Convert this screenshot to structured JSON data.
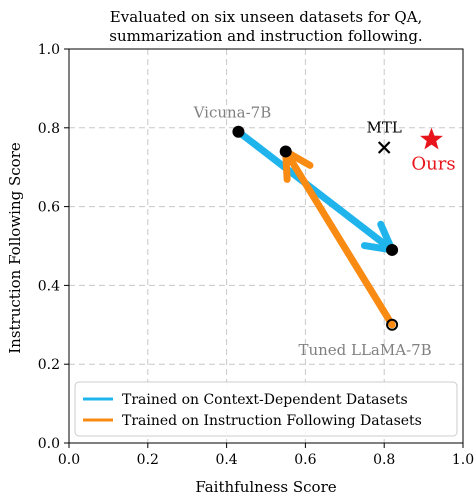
{
  "chart_data": {
    "type": "scatter",
    "title_lines": [
      "Evaluated on six unseen datasets for QA,",
      "summarization and instruction following."
    ],
    "xlabel": "Faithfulness Score",
    "ylabel": "Instruction Following Score",
    "xlim": [
      0.0,
      1.0
    ],
    "ylim": [
      0.0,
      1.0
    ],
    "x_ticks": [
      0.0,
      0.2,
      0.4,
      0.6,
      0.8,
      1.0
    ],
    "y_ticks": [
      0.0,
      0.2,
      0.4,
      0.6,
      0.8,
      1.0
    ],
    "x_tick_labels": [
      "0.0",
      "0.2",
      "0.4",
      "0.6",
      "0.8",
      "1.0"
    ],
    "y_tick_labels": [
      "0.0",
      "0.2",
      "0.4",
      "0.6",
      "0.8",
      "1.0"
    ],
    "grid": true,
    "legend_position": "lower-left",
    "points": [
      {
        "label": "Vicuna-7B",
        "x": 0.43,
        "y": 0.79,
        "marker": "circle",
        "color": "#000000",
        "label_color": "#808080"
      },
      {
        "label": "",
        "x": 0.55,
        "y": 0.74,
        "marker": "circle",
        "color": "#000000"
      },
      {
        "label": "",
        "x": 0.82,
        "y": 0.49,
        "marker": "circle",
        "color": "#000000"
      },
      {
        "label": "Tuned LLaMA-7B",
        "x": 0.82,
        "y": 0.3,
        "marker": "hollow-circle",
        "color": "#000000",
        "label_color": "#808080"
      },
      {
        "label": "MTL",
        "x": 0.8,
        "y": 0.75,
        "marker": "x",
        "color": "#000000",
        "label_color": "#000000"
      },
      {
        "label": "Ours",
        "x": 0.92,
        "y": 0.77,
        "marker": "star",
        "color": "#e8141b",
        "label_color": "#e8141b"
      }
    ],
    "series": [
      {
        "name": "Trained on Context-Dependent Datasets",
        "color": "#1fb4ec",
        "arrows": [
          {
            "from": [
              0.43,
              0.79
            ],
            "to": [
              0.82,
              0.49
            ]
          }
        ]
      },
      {
        "name": "Trained on Instruction Following Datasets",
        "color": "#f98a12",
        "arrows": [
          {
            "from": [
              0.82,
              0.3
            ],
            "to": [
              0.55,
              0.74
            ]
          }
        ]
      }
    ]
  }
}
